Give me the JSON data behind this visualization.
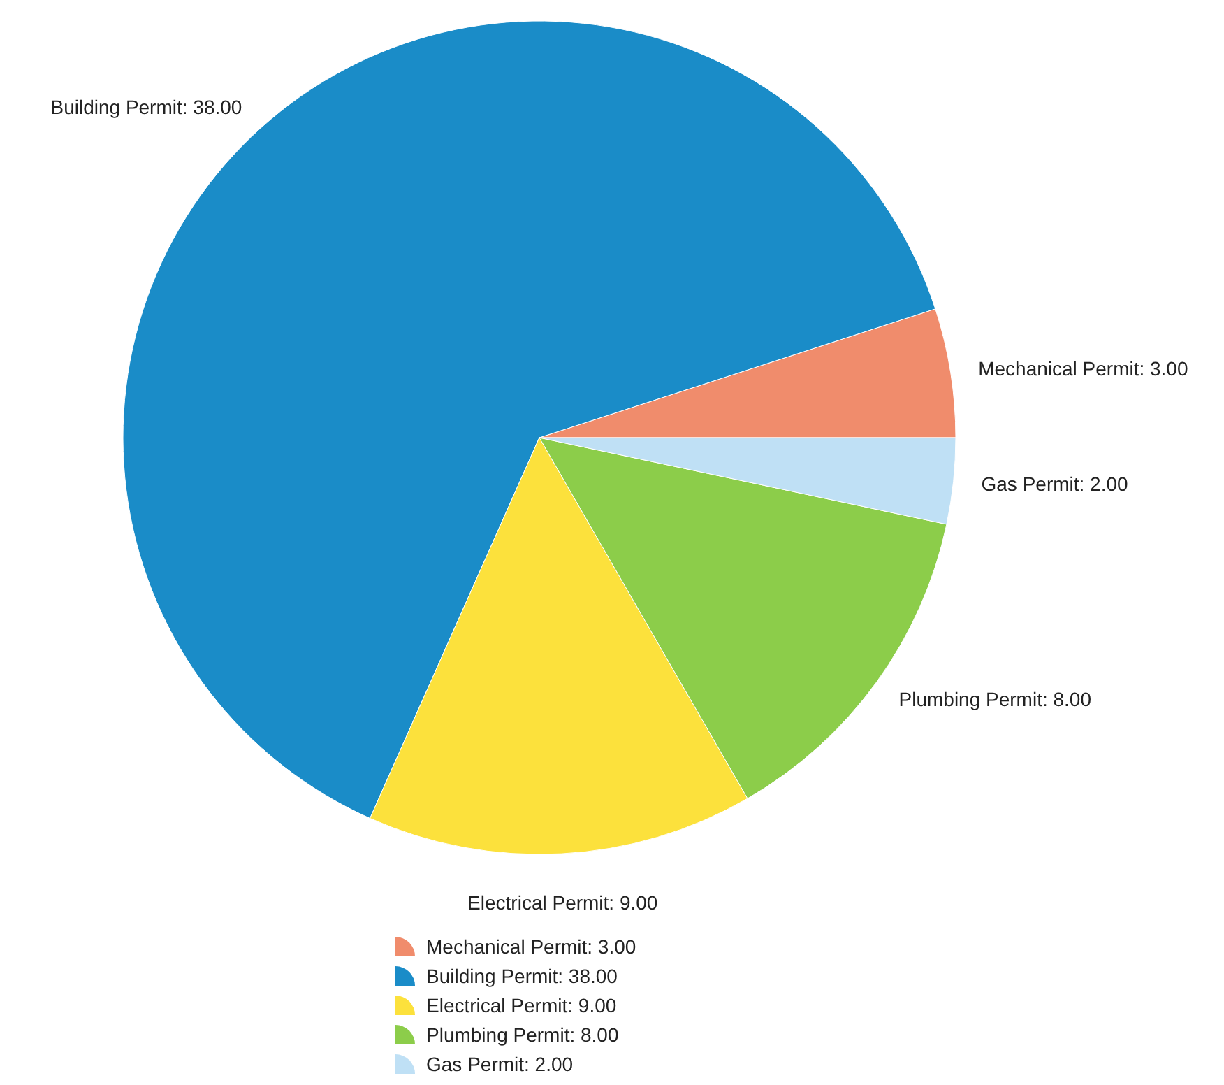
{
  "chart_data": {
    "type": "pie",
    "categories": [
      "Mechanical Permit: 3.00",
      "Building Permit: 38.00",
      "Electrical Permit: 9.00",
      "Plumbing Permit: 8.00",
      "Gas Permit: 2.00"
    ],
    "values": [
      3,
      38,
      9,
      8,
      2
    ],
    "colors": [
      "#f08c6c",
      "#1a8cc8",
      "#fce13c",
      "#8ccd4a",
      "#bfe0f5"
    ],
    "legend": "bottom"
  }
}
